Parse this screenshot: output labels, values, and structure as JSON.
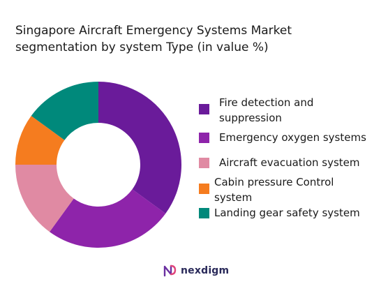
{
  "chart_data": {
    "type": "pie",
    "title_lines": [
      "Singapore Aircraft Emergency Systems Market",
      "segmentation by system Type (in value %)"
    ],
    "categories": [
      "Fire detection and suppression",
      "Emergency oxygen systems",
      "Aircraft evacuation system",
      "Cabin pressure Control system",
      "Landing gear safety system"
    ],
    "values": [
      35,
      25,
      15,
      10,
      15
    ],
    "colors": [
      "#6a1b9a",
      "#8e24aa",
      "#e08aa3",
      "#f57c1f",
      "#00897b"
    ],
    "donut": true,
    "legend_position": "right"
  },
  "legend": {
    "labels": [
      "Fire detection and\nsuppression",
      "Emergency oxygen systems",
      "Aircraft evacuation system",
      "Cabin pressure Control\nsystem",
      "Landing gear safety system"
    ]
  },
  "brand": {
    "name": "nexdigm",
    "color": "#2a2a5a"
  }
}
